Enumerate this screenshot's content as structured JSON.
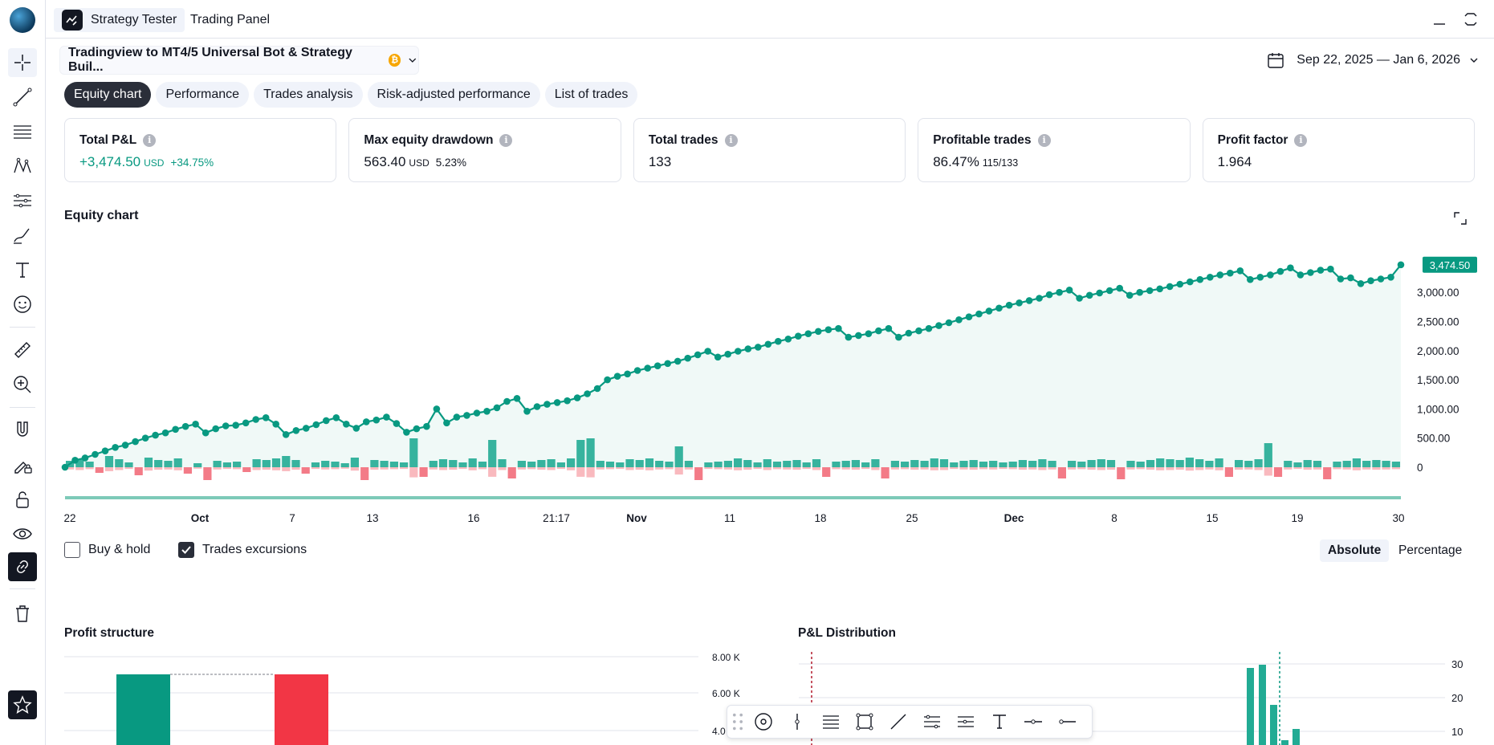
{
  "top_bar": {
    "tabs": [
      {
        "label": "Strategy Tester",
        "active": true
      },
      {
        "label": "Trading Panel",
        "active": false
      }
    ]
  },
  "strategy": {
    "name": "Tradingview to MT4/5 Universal Bot & Strategy Buil...",
    "coin_icon": "bitcoin-coin-icon",
    "coin_glyph": "₿"
  },
  "date_range": "Sep 22, 2025 — Jan 6, 2026",
  "subtabs": [
    {
      "label": "Equity chart",
      "active": true
    },
    {
      "label": "Performance",
      "active": false
    },
    {
      "label": "Trades analysis",
      "active": false
    },
    {
      "label": "Risk-adjusted performance",
      "active": false
    },
    {
      "label": "List of trades",
      "active": false
    }
  ],
  "metrics": {
    "total_pnl": {
      "title": "Total P&L",
      "value": "+3,474.50",
      "unit": "USD",
      "extra": "+34.75%"
    },
    "max_drawdown": {
      "title": "Max equity drawdown",
      "value": "563.40",
      "unit": "USD",
      "extra": "5.23%"
    },
    "total_trades": {
      "title": "Total trades",
      "value": "133"
    },
    "profitable_trades": {
      "title": "Profitable trades",
      "value": "86.47%",
      "extra": "115/133"
    },
    "profit_factor": {
      "title": "Profit factor",
      "value": "1.964"
    }
  },
  "info_glyph": "i",
  "equity_chart": {
    "title": "Equity chart",
    "last_value_label": "3,474.50"
  },
  "chart_data": {
    "type": "line",
    "title": "Equity chart",
    "x_tick_labels": [
      "22",
      "Oct",
      "7",
      "13",
      "16",
      "21:17",
      "Nov",
      "11",
      "18",
      "25",
      "Dec",
      "8",
      "15",
      "19",
      "30"
    ],
    "y_tick_labels": [
      "0",
      "500.00",
      "1,000.00",
      "1,500.00",
      "2,000.00",
      "2,500.00",
      "3,000.00"
    ],
    "ylim": [
      0,
      3300
    ],
    "equity_series": [
      0,
      120,
      160,
      220,
      280,
      340,
      380,
      440,
      500,
      550,
      590,
      650,
      700,
      740,
      590,
      660,
      710,
      720,
      760,
      820,
      850,
      740,
      560,
      630,
      670,
      730,
      800,
      850,
      740,
      670,
      780,
      810,
      860,
      750,
      600,
      660,
      700,
      1000,
      760,
      860,
      890,
      930,
      960,
      1020,
      1130,
      1180,
      960,
      1040,
      1080,
      1110,
      1140,
      1190,
      1260,
      1350,
      1500,
      1560,
      1600,
      1660,
      1700,
      1740,
      1780,
      1820,
      1870,
      1930,
      1990,
      1890,
      1940,
      1990,
      2030,
      2060,
      2110,
      2160,
      2200,
      2250,
      2290,
      2330,
      2360,
      2380,
      2230,
      2260,
      2290,
      2340,
      2380,
      2230,
      2300,
      2340,
      2380,
      2430,
      2480,
      2530,
      2580,
      2630,
      2680,
      2730,
      2780,
      2820,
      2860,
      2900,
      2960,
      3000,
      3040,
      2900,
      2950,
      2990,
      3030,
      3070,
      2950,
      3000,
      3030,
      3060,
      3100,
      3140,
      3180,
      3220,
      3260,
      3300,
      3330,
      3370,
      3220,
      3260,
      3300,
      3360,
      3420,
      3300,
      3340,
      3380,
      3400,
      3230,
      3250,
      3150,
      3200,
      3230,
      3260,
      3474.5
    ],
    "trade_pnl_bars": [
      40,
      50,
      35,
      -35,
      70,
      50,
      30,
      -50,
      60,
      45,
      40,
      55,
      -40,
      25,
      -80,
      40,
      30,
      35,
      -30,
      50,
      45,
      55,
      70,
      45,
      -40,
      30,
      40,
      35,
      25,
      60,
      -80,
      45,
      40,
      35,
      30,
      180,
      -60,
      40,
      50,
      45,
      30,
      55,
      35,
      170,
      50,
      -70,
      40,
      35,
      45,
      50,
      30,
      55,
      170,
      180,
      40,
      35,
      30,
      50,
      45,
      55,
      40,
      35,
      130,
      40,
      -80,
      30,
      35,
      40,
      55,
      45,
      30,
      50,
      35,
      40,
      45,
      30,
      50,
      -60,
      35,
      40,
      45,
      30,
      50,
      -70,
      40,
      35,
      45,
      40,
      55,
      50,
      30,
      40,
      45,
      35,
      40,
      30,
      35,
      45,
      40,
      50,
      40,
      -70,
      40,
      35,
      45,
      50,
      45,
      -75,
      40,
      35,
      45,
      55,
      50,
      45,
      60,
      50,
      40,
      55,
      -60,
      45,
      40,
      50,
      150,
      -60,
      40,
      30,
      45,
      40,
      -75,
      35,
      40,
      55,
      40,
      45,
      40,
      35
    ]
  },
  "options": {
    "buy_hold": {
      "label": "Buy & hold",
      "checked": false
    },
    "trades_excursions": {
      "label": "Trades excursions",
      "checked": true
    },
    "mode_absolute": "Absolute",
    "mode_percentage": "Percentage"
  },
  "profit_structure": {
    "title": "Profit structure",
    "y_tick_labels": [
      "8.00 K",
      "6.00 K",
      "4.0"
    ],
    "colors": {
      "profit": "#089981",
      "loss": "#f23645"
    }
  },
  "pnl_distribution": {
    "title": "P&L Distribution",
    "y_tick_labels": [
      "30",
      "20",
      "10"
    ]
  },
  "colors": {
    "accent_green": "#089981",
    "accent_red": "#f23645",
    "text": "#131722"
  }
}
